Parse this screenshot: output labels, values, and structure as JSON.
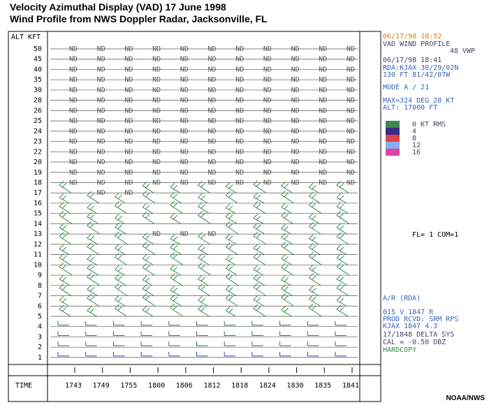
{
  "header": {
    "title": [
      "Velocity Azimuthal Display (VAD) 17 June 1998",
      "Wind Profile from NWS Doppler Radar, Jacksonville, FL"
    ]
  },
  "profile": {
    "alt_header": "ALT KFT",
    "time_header": "TIME",
    "altitudes": [
      50,
      45,
      40,
      35,
      30,
      28,
      26,
      25,
      24,
      23,
      22,
      20,
      19,
      18,
      17,
      16,
      15,
      14,
      13,
      12,
      11,
      10,
      9,
      8,
      7,
      6,
      5,
      4,
      3,
      2,
      1
    ],
    "times": [
      "1743",
      "1749",
      "1755",
      "1800",
      "1806",
      "1812",
      "1818",
      "1824",
      "1830",
      "1835",
      "1841"
    ],
    "rows": [
      [
        "ND",
        "ND",
        "ND",
        "ND",
        "ND",
        "ND",
        "ND",
        "ND",
        "ND",
        "ND",
        "ND"
      ],
      [
        "ND",
        "ND",
        "ND",
        "ND",
        "ND",
        "ND",
        "ND",
        "ND",
        "ND",
        "ND",
        "ND"
      ],
      [
        "ND",
        "ND",
        "ND",
        "ND",
        "ND",
        "ND",
        "ND",
        "ND",
        "ND",
        "ND",
        "ND"
      ],
      [
        "ND",
        "ND",
        "ND",
        "ND",
        "ND",
        "ND",
        "ND",
        "ND",
        "ND",
        "ND",
        "ND"
      ],
      [
        "ND",
        "ND",
        "ND",
        "ND",
        "ND",
        "ND",
        "ND",
        "ND",
        "ND",
        "ND",
        "ND"
      ],
      [
        "ND",
        "ND",
        "ND",
        "ND",
        "ND",
        "ND",
        "ND",
        "ND",
        "ND",
        "ND",
        "ND"
      ],
      [
        "ND",
        "ND",
        "ND",
        "ND",
        "ND",
        "ND",
        "ND",
        "ND",
        "ND",
        "ND",
        "ND"
      ],
      [
        "ND",
        "ND",
        "ND",
        "ND",
        "ND",
        "ND",
        "ND",
        "ND",
        "ND",
        "ND",
        "ND"
      ],
      [
        "ND",
        "ND",
        "ND",
        "ND",
        "ND",
        "ND",
        "ND",
        "ND",
        "ND",
        "ND",
        "ND"
      ],
      [
        "ND",
        "ND",
        "ND",
        "ND",
        "ND",
        "ND",
        "ND",
        "ND",
        "ND",
        "ND",
        "ND"
      ],
      [
        "ND",
        "ND",
        "ND",
        "ND",
        "ND",
        "ND",
        "ND",
        "ND",
        "ND",
        "ND",
        "ND"
      ],
      [
        "ND",
        "ND",
        "ND",
        "ND",
        "ND",
        "ND",
        "ND",
        "ND",
        "ND",
        "ND",
        "ND"
      ],
      [
        "ND",
        "ND",
        "ND",
        "ND",
        "ND",
        "ND",
        "ND",
        "ND",
        "ND",
        "ND",
        "ND"
      ],
      [
        "ND",
        "ND",
        "ND",
        "ND",
        "ND",
        "ND",
        "ND",
        "ND",
        "ND",
        "ND",
        "ND"
      ],
      [
        null,
        "ND",
        "ND",
        null,
        null,
        null,
        null,
        null,
        null,
        null,
        null
      ],
      [
        null,
        null,
        null,
        null,
        null,
        null,
        null,
        null,
        null,
        null,
        null
      ],
      [
        null,
        null,
        null,
        null,
        null,
        null,
        null,
        null,
        null,
        null,
        null
      ],
      [
        null,
        null,
        null,
        null,
        null,
        null,
        null,
        null,
        null,
        null,
        null
      ],
      [
        null,
        null,
        null,
        "ND",
        "ND",
        "ND",
        null,
        null,
        null,
        null,
        null
      ],
      [
        null,
        null,
        null,
        null,
        null,
        null,
        null,
        null,
        null,
        null,
        null
      ],
      [
        null,
        null,
        null,
        null,
        null,
        null,
        null,
        null,
        null,
        null,
        null
      ],
      [
        null,
        null,
        null,
        null,
        null,
        null,
        null,
        null,
        null,
        null,
        null
      ],
      [
        null,
        null,
        null,
        null,
        null,
        null,
        null,
        null,
        null,
        null,
        null
      ],
      [
        null,
        null,
        null,
        null,
        null,
        null,
        null,
        null,
        null,
        null,
        null
      ],
      [
        null,
        null,
        null,
        null,
        null,
        null,
        null,
        null,
        null,
        null,
        null
      ],
      [
        null,
        null,
        null,
        null,
        null,
        null,
        null,
        null,
        null,
        null,
        null
      ],
      [
        null,
        null,
        null,
        null,
        null,
        null,
        null,
        null,
        null,
        null,
        null
      ],
      [
        null,
        null,
        null,
        null,
        null,
        null,
        null,
        null,
        null,
        null,
        null
      ],
      [
        null,
        null,
        null,
        null,
        null,
        null,
        null,
        null,
        null,
        null,
        null
      ],
      [
        null,
        null,
        null,
        null,
        null,
        null,
        null,
        null,
        null,
        null,
        null
      ],
      [
        null,
        null,
        null,
        null,
        null,
        null,
        null,
        null,
        null,
        null,
        null
      ]
    ]
  },
  "side_panel": {
    "top": [
      "06/17/98 18:52",
      "VAD WIND PROFILE",
      "48 VWP",
      "06/17/98 18:41",
      "RDA:KJAX 30/29/02N",
      "130 FT  81/42/07W",
      "MODE A /   21",
      "MAX=324 DEG  20 KT",
      "ALT: 17000 FT"
    ],
    "legend": [
      "0   KT  RMS",
      "4",
      "8",
      "12",
      "16"
    ],
    "flags": "FL= 1 COM=1",
    "bottom": [
      "A/R (RDA)",
      "015 V   1847     R",
      "PROD RCVD: SRM RPS",
      "KJAX 1847       4.3",
      "17/1848 DELTA SYS",
      "CAL =  -0.50 DBZ",
      "HARDCOPY"
    ]
  },
  "footer": {
    "credit": "NOAA/NWS"
  }
}
